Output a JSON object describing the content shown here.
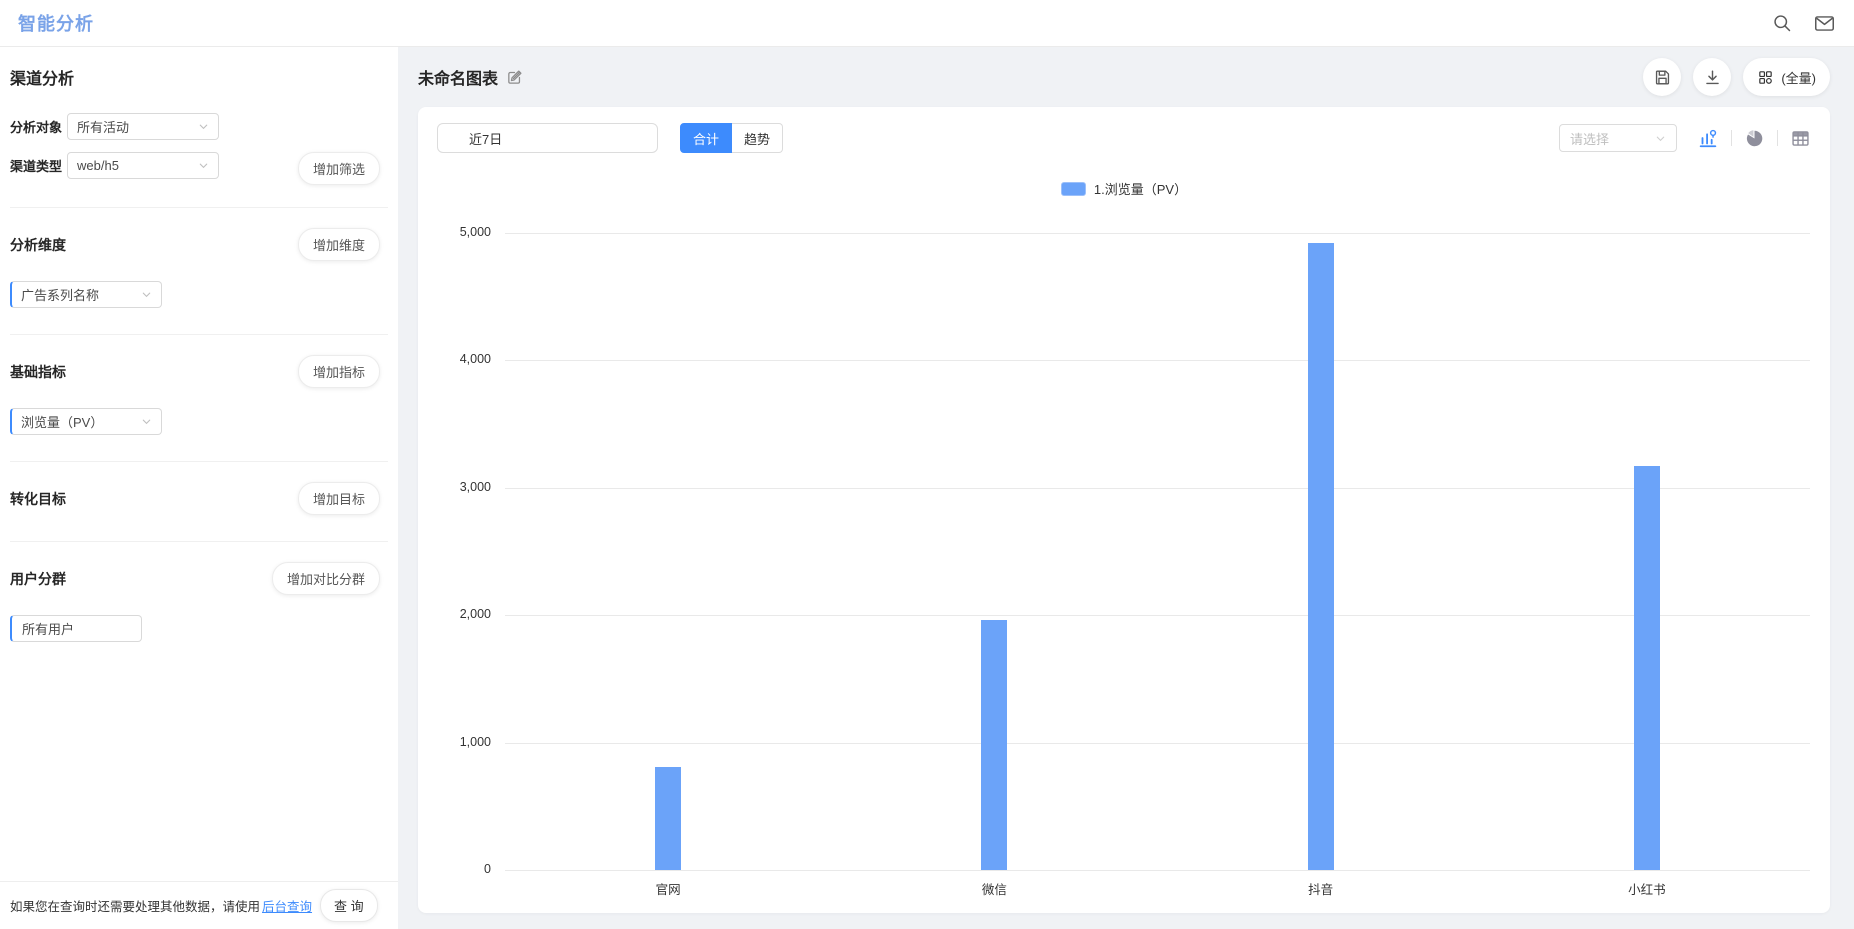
{
  "header": {
    "title": "智能分析"
  },
  "sidebar": {
    "title": "渠道分析",
    "analysis_object": {
      "label": "分析对象",
      "value": "所有活动"
    },
    "channel_type": {
      "label": "渠道类型",
      "value": "web/h5"
    },
    "add_filter_button": "增加筛选",
    "dimension_section": {
      "title": "分析维度",
      "add_button": "增加维度",
      "select_value": "广告系列名称"
    },
    "metric_section": {
      "title": "基础指标",
      "add_button": "增加指标",
      "select_value": "浏览量（PV）"
    },
    "goal_section": {
      "title": "转化目标",
      "add_button": "增加目标"
    },
    "cohort_section": {
      "title": "用户分群",
      "add_button": "增加对比分群",
      "value": "所有用户"
    },
    "footer": {
      "hint_prefix": "如果您在查询时还需要处理其他数据，请使用",
      "link": "后台查询",
      "query_button": "查 询"
    }
  },
  "main": {
    "chart_title": "未命名图表",
    "full_button": "(全量)",
    "toolbar": {
      "date_range": "近7日",
      "total_tab": "合计",
      "trend_tab": "趋势",
      "select_placeholder": "请选择"
    }
  },
  "chart_data": {
    "type": "bar",
    "title": "未命名图表",
    "legend": "1.浏览量（PV）",
    "legend_position": "top-center",
    "categories": [
      "官网",
      "微信",
      "抖音",
      "小红书"
    ],
    "series": [
      {
        "name": "1.浏览量（PV）",
        "values": [
          810,
          1960,
          4920,
          3170
        ]
      }
    ],
    "ylim": [
      0,
      5000
    ],
    "yticks": [
      "5,000",
      "4,000",
      "3,000",
      "2,000",
      "1,000",
      "0"
    ],
    "grid": true,
    "bar_color": "#6ba3f9"
  },
  "colors": {
    "primary": "#3d8bfd",
    "bar": "#6ba3f9",
    "header_title": "#7aa3e8"
  }
}
